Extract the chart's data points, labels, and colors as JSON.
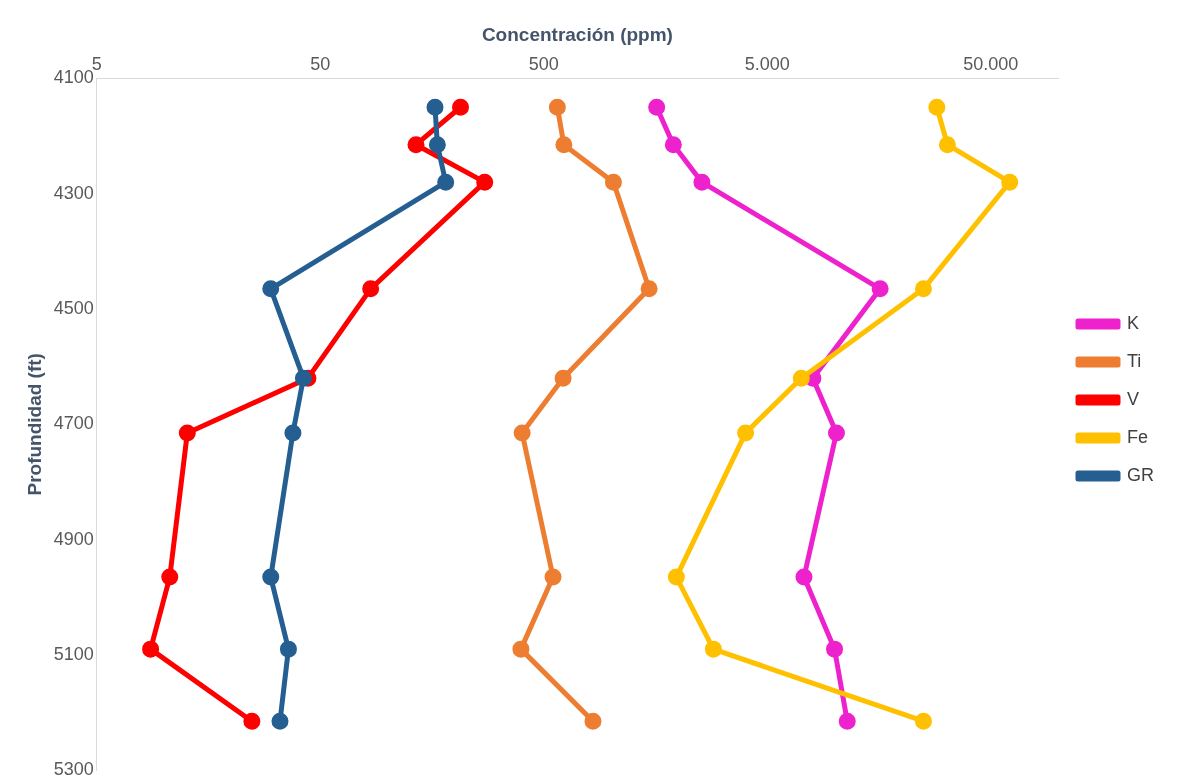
{
  "chart_data": {
    "type": "line",
    "xlabel": "Concentración (ppm)",
    "ylabel": "Profundidad (ft)",
    "log": "x",
    "xlim": [
      5,
      100000
    ],
    "xticks": [
      5,
      50,
      500,
      {
        "value": 5000,
        "label": "5.000"
      },
      {
        "value": 50000,
        "label": "50.000"
      }
    ],
    "ylim": [
      5300,
      4100
    ],
    "yticks": [
      4100,
      4300,
      4500,
      4700,
      4900,
      5100,
      5300
    ],
    "grid": false,
    "legend": "right",
    "marker": "circle",
    "line_style": "solid",
    "series": [
      {
        "name": "K",
        "color": "#ee22cc",
        "x": [
          1600,
          1900,
          2550,
          16000,
          8000,
          10200,
          7300,
          10000,
          11400
        ],
        "values": [
          4150,
          4215,
          4280,
          4465,
          4620,
          4715,
          4965,
          5090,
          5215
        ]
      },
      {
        "name": "Ti",
        "color": "#ed7d31",
        "x": [
          575,
          615,
          1025,
          1480,
          610,
          400,
          550,
          395,
          830
        ],
        "values": [
          4150,
          4215,
          4280,
          4465,
          4620,
          4715,
          4965,
          5090,
          5215
        ]
      },
      {
        "name": "V",
        "color": "#ff0000",
        "x": [
          212,
          134,
          272,
          84,
          44,
          12.7,
          10.6,
          8.7,
          24.7
        ],
        "values": [
          4150,
          4215,
          4280,
          4465,
          4620,
          4715,
          4965,
          5090,
          5215
        ]
      },
      {
        "name": "Fe",
        "color": "#ffc000",
        "x": [
          28700,
          32000,
          60800,
          25000,
          7100,
          4000,
          1960,
          2870,
          25000
        ],
        "values": [
          4150,
          4215,
          4280,
          4465,
          4620,
          4715,
          4965,
          5090,
          5215
        ]
      },
      {
        "name": "GR",
        "color": "#255e91",
        "x": [
          163,
          167,
          182,
          30,
          42,
          37.7,
          30,
          36,
          33
        ],
        "values": [
          4150,
          4215,
          4280,
          4465,
          4620,
          4715,
          4965,
          5090,
          5215
        ]
      }
    ]
  }
}
